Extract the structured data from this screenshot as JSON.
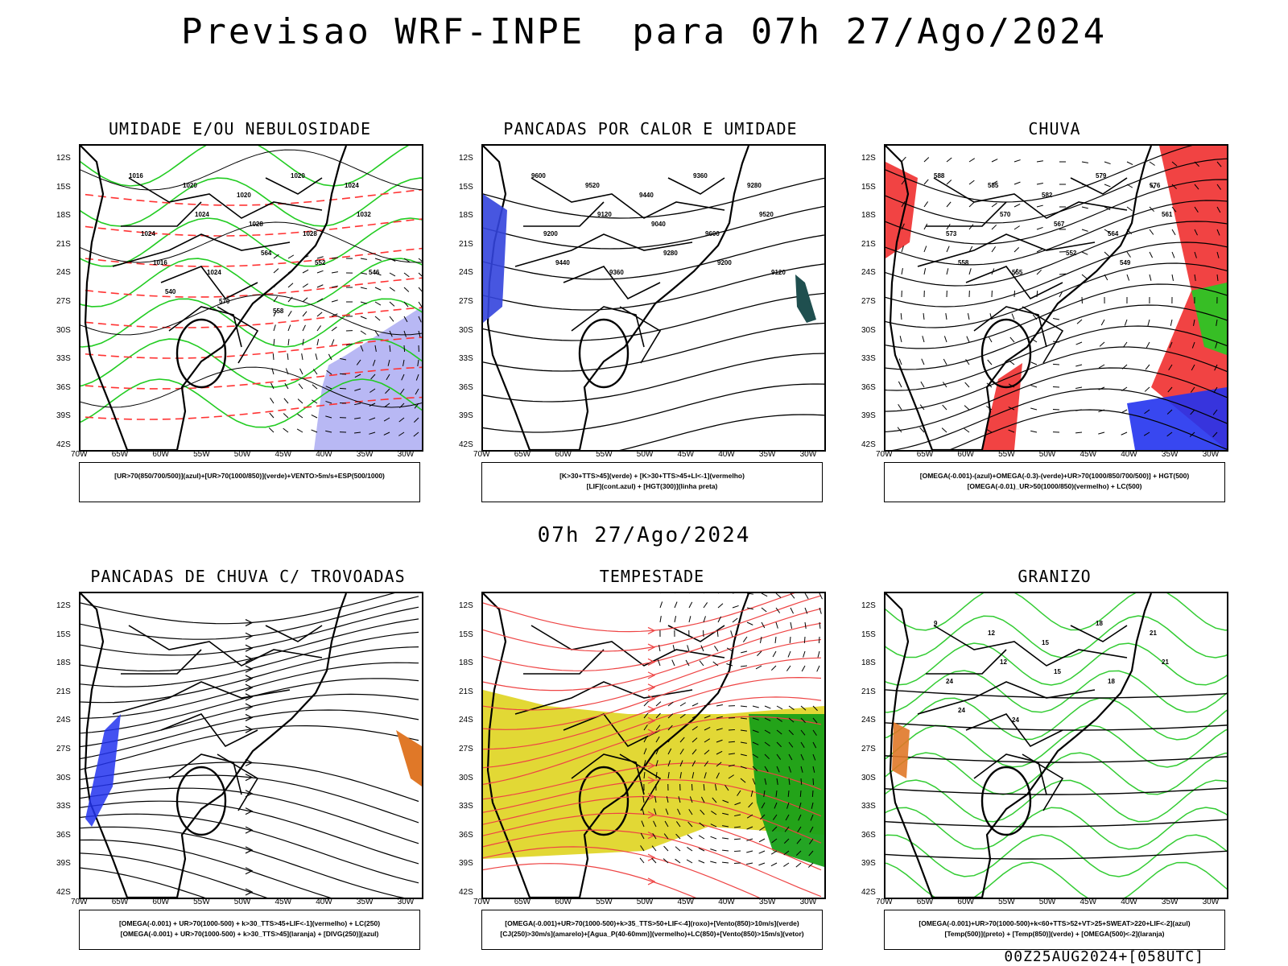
{
  "title": "Previsao WRF-INPE  para 07h 27/Ago/2024",
  "mid_time": "07h 27/Ago/2024",
  "footer": "00Z25AUG2024+[058UTC]",
  "lat_labels": [
    "12S",
    "15S",
    "18S",
    "21S",
    "24S",
    "27S",
    "30S",
    "33S",
    "36S",
    "39S",
    "42S"
  ],
  "lon_labels": [
    "70W",
    "65W",
    "60W",
    "55W",
    "50W",
    "45W",
    "40W",
    "35W",
    "30W"
  ],
  "colors": {
    "humidity_blue": "#9a9af0",
    "humidity_green": "#22cc22",
    "thickness_red": "#ff3333",
    "rain_red": "#ee2222",
    "storm_yellow": "#e0d62a",
    "storm_green": "#18a018",
    "hail_green": "#33cc33",
    "shower_blue": "#2233ee",
    "shower_orange": "#e07828",
    "lif_blue": "#3344dd",
    "dark_teal": "#1f4f4f"
  },
  "panels": [
    {
      "title": "UMIDADE E/OU NEBULOSIDADE",
      "legend": [
        "[UR>70(850/700/500)](azul)+[UR>70(1000/850)](verde)+VENTO>5m/s+ESP(500/1000)"
      ],
      "contour_labels": [
        "1016",
        "1020",
        "1020",
        "1020",
        "1024",
        "1024",
        "1024",
        "1028",
        "1028",
        "1032",
        "1016",
        "1024",
        "564",
        "552",
        "546",
        "540",
        "570",
        "558"
      ]
    },
    {
      "title": "PANCADAS POR CALOR E UMIDADE",
      "legend": [
        "[K>30+TTS>45](verde) + [K>30+TTS>45+LI<-1](vermelho)",
        "[LIF](cont.azul) + [HGT(300)](linha preta)"
      ],
      "contour_labels": [
        "9600",
        "9520",
        "9440",
        "9360",
        "9280",
        "9200",
        "9120",
        "9040",
        "9600",
        "9520",
        "9440",
        "9360",
        "9280",
        "9200",
        "9120"
      ]
    },
    {
      "title": "CHUVA",
      "legend": [
        "[OMEGA(-0.001)-(azul)+OMEGA(-0.3)-(verde)+UR>70(1000/850/700/500)] + HGT(500)",
        "[OMEGA(-0.01)_UR>50(1000/850)(vermelho) + LC(500)"
      ],
      "contour_labels": [
        "588",
        "585",
        "582",
        "579",
        "576",
        "573",
        "570",
        "567",
        "564",
        "561",
        "558",
        "555",
        "552",
        "549"
      ]
    },
    {
      "title": "PANCADAS DE CHUVA C/ TROVOADAS",
      "legend": [
        "[OMEGA(-0.001) + UR>70(1000-500) + k>30_TTS>45+LIF<-1](vermelho) + LC(250)",
        "[OMEGA(-0.001) + UR>70(1000-500) + k>30_TTS>45](laranja) + [DIVG(250)](azul)"
      ],
      "contour_labels": []
    },
    {
      "title": "TEMPESTADE",
      "legend": [
        "[OMEGA(-0.001)+UR>70(1000-500)+k>35_TTS>50+LIF<-4](roxo)+[Vento(850)>10m/s](verde)",
        "[CJ(250)>30m/s](amarelo)+[Agua_P(40-60mm)](vermelho)+LC(850)+[Vento(850)>15m/s](vetor)"
      ],
      "contour_labels": []
    },
    {
      "title": "GRANIZO",
      "legend": [
        "[OMEGA(-0.001)+UR>70(1000-500)+k<60+TTS>52+VT>25+SWEAT>220+LIF<-2](azul)",
        "[Temp(500)](preto) + [Temp(850)](verde) + [OMEGA(500)<-2](laranja)"
      ],
      "contour_labels": [
        "9",
        "12",
        "15",
        "18",
        "21",
        "24",
        "12",
        "15",
        "18",
        "21",
        "24",
        "24"
      ]
    }
  ]
}
